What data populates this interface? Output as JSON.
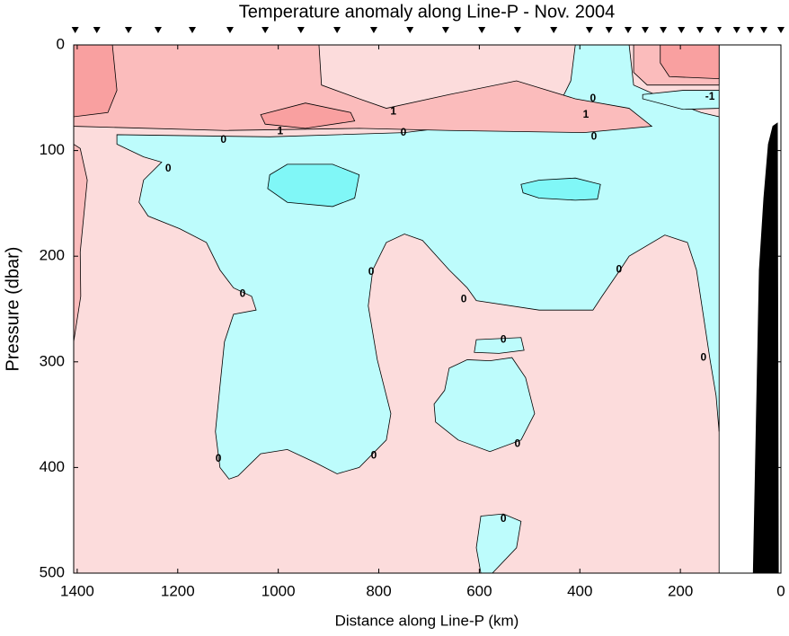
{
  "chart_data": {
    "type": "contour",
    "title": "Temperature anomaly along Line-P - Nov. 2004",
    "xlabel": "Distance along Line-P (km)",
    "ylabel": "Pressure (dbar)",
    "xlim": [
      1407,
      0
    ],
    "ylim": [
      0,
      500
    ],
    "xticks": [
      1400,
      1200,
      1000,
      800,
      600,
      400,
      200,
      0
    ],
    "yticks": [
      0,
      100,
      200,
      300,
      400,
      500
    ],
    "stations": [
      1404,
      1361,
      1298,
      1239,
      1171,
      1096,
      1026,
      955,
      883,
      810,
      738,
      667,
      595,
      524,
      452,
      381,
      342,
      304,
      270,
      234,
      198,
      161,
      125,
      88,
      61,
      34,
      0
    ],
    "regions": [
      {
        "color": "#fcdcdc",
        "points": [
          [
            1407,
            0
          ],
          [
            123,
            0
          ],
          [
            123,
            500
          ],
          [
            1407,
            500
          ]
        ]
      },
      {
        "color": "#bdfcfc",
        "points": [
          [
            1321,
            85
          ],
          [
            1017,
            87
          ],
          [
            749,
            83
          ],
          [
            552,
            72
          ],
          [
            445,
            60
          ],
          [
            418,
            34
          ],
          [
            409,
            0
          ],
          [
            302,
            0
          ],
          [
            293,
            38
          ],
          [
            231,
            51
          ],
          [
            159,
            64
          ],
          [
            123,
            68
          ],
          [
            123,
            366
          ],
          [
            129,
            332
          ],
          [
            141,
            298
          ],
          [
            168,
            213
          ],
          [
            186,
            187
          ],
          [
            231,
            180
          ],
          [
            302,
            200
          ],
          [
            320,
            213
          ],
          [
            356,
            238
          ],
          [
            374,
            251
          ],
          [
            481,
            251
          ],
          [
            606,
            242
          ],
          [
            624,
            230
          ],
          [
            660,
            213
          ],
          [
            713,
            185
          ],
          [
            749,
            179
          ],
          [
            785,
            187
          ],
          [
            812,
            213
          ],
          [
            821,
            247
          ],
          [
            803,
            298
          ],
          [
            776,
            349
          ],
          [
            785,
            374
          ],
          [
            839,
            400
          ],
          [
            883,
            406
          ],
          [
            928,
            395
          ],
          [
            982,
            383
          ],
          [
            1035,
            387
          ],
          [
            1080,
            408
          ],
          [
            1098,
            411
          ],
          [
            1116,
            400
          ],
          [
            1125,
            366
          ],
          [
            1116,
            323
          ],
          [
            1107,
            281
          ],
          [
            1089,
            255
          ],
          [
            1044,
            251
          ],
          [
            1053,
            238
          ],
          [
            1089,
            230
          ],
          [
            1116,
            213
          ],
          [
            1143,
            187
          ],
          [
            1196,
            174
          ],
          [
            1259,
            162
          ],
          [
            1277,
            149
          ],
          [
            1268,
            128
          ],
          [
            1232,
            111
          ],
          [
            1268,
            106
          ],
          [
            1321,
            94
          ]
        ]
      },
      {
        "color": "#fbbcbc",
        "points": [
          [
            1407,
            0
          ],
          [
            919,
            0
          ],
          [
            914,
            38
          ],
          [
            839,
            51
          ],
          [
            785,
            60
          ],
          [
            660,
            47
          ],
          [
            526,
            34
          ],
          [
            409,
            51
          ],
          [
            302,
            60
          ],
          [
            257,
            77
          ],
          [
            392,
            83
          ],
          [
            660,
            81
          ],
          [
            839,
            79
          ],
          [
            1107,
            81
          ],
          [
            1407,
            77
          ]
        ]
      },
      {
        "color": "#fbbcbc",
        "points": [
          [
            293,
            0
          ],
          [
            123,
            0
          ],
          [
            123,
            38
          ],
          [
            266,
            38
          ],
          [
            293,
            26
          ]
        ]
      },
      {
        "color": "#fbbcbc",
        "points": [
          [
            1407,
            94
          ],
          [
            1394,
            98
          ],
          [
            1380,
            128
          ],
          [
            1394,
            196
          ],
          [
            1393,
            238
          ],
          [
            1407,
            281
          ]
        ]
      },
      {
        "color": "#f9a0a0",
        "points": [
          [
            1407,
            0
          ],
          [
            1330,
            0
          ],
          [
            1321,
            43
          ],
          [
            1339,
            64
          ],
          [
            1407,
            68
          ]
        ]
      },
      {
        "color": "#f9a0a0",
        "points": [
          [
            1035,
            66
          ],
          [
            946,
            55
          ],
          [
            856,
            64
          ],
          [
            848,
            72
          ],
          [
            946,
            79
          ],
          [
            1026,
            75
          ]
        ]
      },
      {
        "color": "#f9a0a0",
        "points": [
          [
            240,
            0
          ],
          [
            123,
            0
          ],
          [
            123,
            32
          ],
          [
            222,
            30
          ],
          [
            240,
            17
          ]
        ]
      },
      {
        "color": "#bdfcfc",
        "points": [
          [
            275,
            47
          ],
          [
            195,
            43
          ],
          [
            123,
            43
          ],
          [
            123,
            60
          ],
          [
            195,
            61
          ],
          [
            275,
            51
          ]
        ]
      },
      {
        "color": "#80f7f7",
        "points": [
          [
            1017,
            123
          ],
          [
            982,
            113
          ],
          [
            892,
            113
          ],
          [
            839,
            123
          ],
          [
            848,
            145
          ],
          [
            892,
            153
          ],
          [
            982,
            149
          ],
          [
            1021,
            136
          ]
        ]
      },
      {
        "color": "#80f7f7",
        "points": [
          [
            517,
            132
          ],
          [
            481,
            128
          ],
          [
            409,
            126
          ],
          [
            359,
            132
          ],
          [
            365,
            146
          ],
          [
            409,
            147
          ],
          [
            481,
            145
          ],
          [
            513,
            140
          ]
        ]
      },
      {
        "color": "#bdfcfc",
        "points": [
          [
            660,
            306
          ],
          [
            624,
            298
          ],
          [
            579,
            299
          ],
          [
            535,
            296
          ],
          [
            508,
            315
          ],
          [
            490,
            349
          ],
          [
            517,
            374
          ],
          [
            579,
            385
          ],
          [
            642,
            374
          ],
          [
            687,
            357
          ],
          [
            690,
            340
          ],
          [
            669,
            327
          ]
        ]
      },
      {
        "color": "#bdfcfc",
        "points": [
          [
            606,
            279
          ],
          [
            517,
            277
          ],
          [
            511,
            289
          ],
          [
            561,
            292
          ],
          [
            610,
            291
          ]
        ]
      },
      {
        "color": "#bdfcfc",
        "points": [
          [
            597,
            446
          ],
          [
            552,
            444
          ],
          [
            517,
            451
          ],
          [
            526,
            476
          ],
          [
            574,
            500
          ],
          [
            597,
            500
          ],
          [
            606,
            476
          ]
        ]
      },
      {
        "color": "#000000",
        "points": [
          [
            55,
            500
          ],
          [
            43,
            213
          ],
          [
            34,
            145
          ],
          [
            25,
            94
          ],
          [
            16,
            77
          ],
          [
            7,
            74
          ],
          [
            5,
            500
          ]
        ]
      }
    ],
    "contour_labels": [
      {
        "value": 0,
        "x": 374,
        "y": 51
      },
      {
        "value": -1,
        "x": 141,
        "y": 49
      },
      {
        "value": 1,
        "x": 771,
        "y": 63
      },
      {
        "value": 1,
        "x": 388,
        "y": 66
      },
      {
        "value": 1,
        "x": 996,
        "y": 82
      },
      {
        "value": 0,
        "x": 1109,
        "y": 90
      },
      {
        "value": 0,
        "x": 751,
        "y": 83
      },
      {
        "value": 0,
        "x": 372,
        "y": 87
      },
      {
        "value": 0,
        "x": 1219,
        "y": 117
      },
      {
        "value": 0,
        "x": 815,
        "y": 215
      },
      {
        "value": 0,
        "x": 322,
        "y": 213
      },
      {
        "value": 0,
        "x": 1071,
        "y": 236
      },
      {
        "value": 0,
        "x": 631,
        "y": 241
      },
      {
        "value": 0,
        "x": 552,
        "y": 279
      },
      {
        "value": 0,
        "x": 154,
        "y": 296
      },
      {
        "value": 0,
        "x": 524,
        "y": 378
      },
      {
        "value": 0,
        "x": 1119,
        "y": 392
      },
      {
        "value": 0,
        "x": 810,
        "y": 389
      },
      {
        "value": 0,
        "x": 552,
        "y": 449
      }
    ]
  }
}
